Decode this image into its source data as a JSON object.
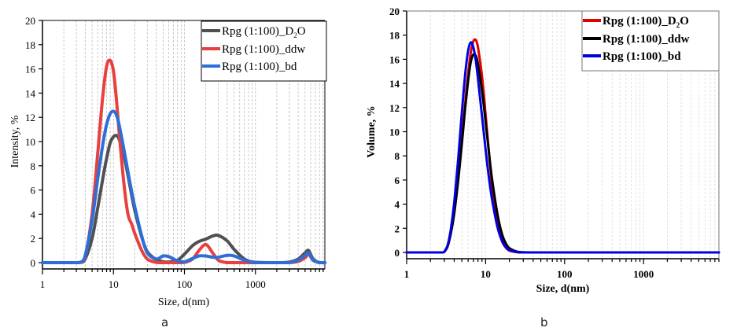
{
  "captions": {
    "a": "a",
    "b": "b"
  },
  "chart_data": [
    {
      "type": "line",
      "panel": "a",
      "xscale": "log",
      "xlabel": "Size, d(nm)",
      "ylabel": "Intensity, %",
      "xlim": [
        1,
        9500
      ],
      "ylim": [
        -0.5,
        20
      ],
      "xticks": [
        1,
        10,
        100,
        1000
      ],
      "xtick_labels": [
        "1",
        "10",
        "100",
        "1000"
      ],
      "yticks": [
        0,
        2,
        4,
        6,
        8,
        10,
        12,
        14,
        16,
        18,
        20
      ],
      "ytick_labels": [
        "0",
        "2",
        "4",
        "6",
        "8",
        "10",
        "12",
        "14",
        "16",
        "18",
        "20"
      ],
      "grid": "vertical-minor",
      "legend_placement": "top-right",
      "x": [
        1,
        2,
        3,
        3.5,
        4,
        5,
        6,
        7,
        8,
        9,
        10,
        11,
        12,
        14,
        16,
        18,
        20,
        25,
        30,
        40,
        50,
        60,
        80,
        100,
        130,
        160,
        200,
        250,
        300,
        400,
        500,
        700,
        1000,
        2000,
        3000,
        4000,
        5000,
        5600,
        6500,
        8000,
        9500
      ],
      "series": [
        {
          "name": "Rpg (1:100)_D2O",
          "name_main": "Rpg (1:100)_D",
          "name_sub": "2",
          "name_tail": "O",
          "color": "#505050",
          "values": [
            0,
            0,
            0,
            0.02,
            0.3,
            2.0,
            4.5,
            6.8,
            8.6,
            9.9,
            10.4,
            10.5,
            10.2,
            8.9,
            7.2,
            5.6,
            4.3,
            2.1,
            0.9,
            0.25,
            0.08,
            0.05,
            0.2,
            0.7,
            1.4,
            1.75,
            1.95,
            2.2,
            2.25,
            1.8,
            1.1,
            0.3,
            0.03,
            0,
            0.05,
            0.3,
            0.8,
            1.0,
            0.3,
            0,
            0
          ]
        },
        {
          "name": "Rpg (1:100)_ddw",
          "color": "#e8403f",
          "values": [
            0,
            0,
            0,
            0.03,
            0.5,
            4.0,
            9.0,
            13.5,
            16.2,
            16.7,
            15.8,
            13.5,
            10.8,
            6.6,
            4.0,
            3.2,
            2.4,
            1.0,
            0.3,
            0.02,
            0,
            0,
            0,
            0.02,
            0.3,
            1.0,
            1.5,
            0.8,
            0.2,
            0,
            0,
            0,
            0,
            0,
            0,
            0.1,
            0.4,
            0.7,
            0.2,
            0,
            0
          ]
        },
        {
          "name": "Rpg (1:100)_bd",
          "color": "#2d6fd6",
          "values": [
            0,
            0,
            0,
            0.05,
            0.6,
            3.5,
            6.9,
            9.6,
            11.4,
            12.3,
            12.5,
            12.2,
            11.4,
            9.4,
            7.5,
            5.9,
            4.6,
            2.2,
            0.8,
            0.3,
            0.55,
            0.5,
            0.15,
            0.08,
            0.35,
            0.55,
            0.55,
            0.45,
            0.45,
            0.6,
            0.55,
            0.2,
            0.02,
            0,
            0.02,
            0.2,
            0.6,
            0.8,
            0.2,
            0,
            0
          ]
        }
      ]
    },
    {
      "type": "line",
      "panel": "b",
      "xscale": "log",
      "xlabel": "Size, d(nm)",
      "ylabel": "Volume, %",
      "xlim": [
        1,
        9000
      ],
      "ylim": [
        -0.5,
        20
      ],
      "xticks": [
        1,
        10,
        100,
        1000
      ],
      "xtick_labels": [
        "1",
        "10",
        "100",
        "1000"
      ],
      "yticks": [
        0,
        2,
        4,
        6,
        8,
        10,
        12,
        14,
        16,
        18,
        20
      ],
      "ytick_labels": [
        "0",
        "2",
        "4",
        "6",
        "8",
        "10",
        "12",
        "14",
        "16",
        "18",
        "20"
      ],
      "grid": "vertical-minor",
      "legend_placement": "top-right",
      "x": [
        1,
        2,
        2.8,
        3,
        3.3,
        3.6,
        4,
        4.5,
        5,
        5.5,
        6,
        6.5,
        7,
        7.5,
        8,
        9,
        10,
        11,
        12,
        14,
        16,
        18,
        20,
        25,
        30,
        40,
        100,
        1000,
        9000
      ],
      "series": [
        {
          "name": "Rpg (1:100)_D2O",
          "name_main": "Rpg (1:100)_D",
          "name_sub": "2",
          "name_tail": "O",
          "color": "#e00000",
          "values": [
            0,
            0,
            0,
            0.05,
            0.5,
            1.5,
            3.3,
            6.2,
            9.3,
            12.3,
            14.8,
            16.6,
            17.5,
            17.6,
            17.0,
            14.6,
            11.4,
            8.3,
            5.8,
            2.6,
            1.0,
            0.4,
            0.15,
            0.02,
            0,
            0,
            0,
            0,
            0
          ]
        },
        {
          "name": "Rpg (1:100)_ddw",
          "color": "#000000",
          "values": [
            0,
            0,
            0,
            0.05,
            0.5,
            1.5,
            3.2,
            6.0,
            9.0,
            11.9,
            14.2,
            15.8,
            16.4,
            16.3,
            15.6,
            13.4,
            10.8,
            8.3,
            6.2,
            3.3,
            1.6,
            0.75,
            0.35,
            0.06,
            0.01,
            0,
            0,
            0,
            0
          ]
        },
        {
          "name": "Rpg (1:100)_bd",
          "color": "#0000e0",
          "values": [
            0,
            0,
            0,
            0.06,
            0.6,
            1.8,
            4.1,
            7.8,
            11.6,
            14.7,
            16.7,
            17.4,
            17.0,
            15.9,
            14.4,
            11.3,
            8.5,
            6.2,
            4.5,
            2.2,
            1.0,
            0.45,
            0.2,
            0.03,
            0,
            0,
            0,
            0,
            0
          ]
        }
      ]
    }
  ]
}
